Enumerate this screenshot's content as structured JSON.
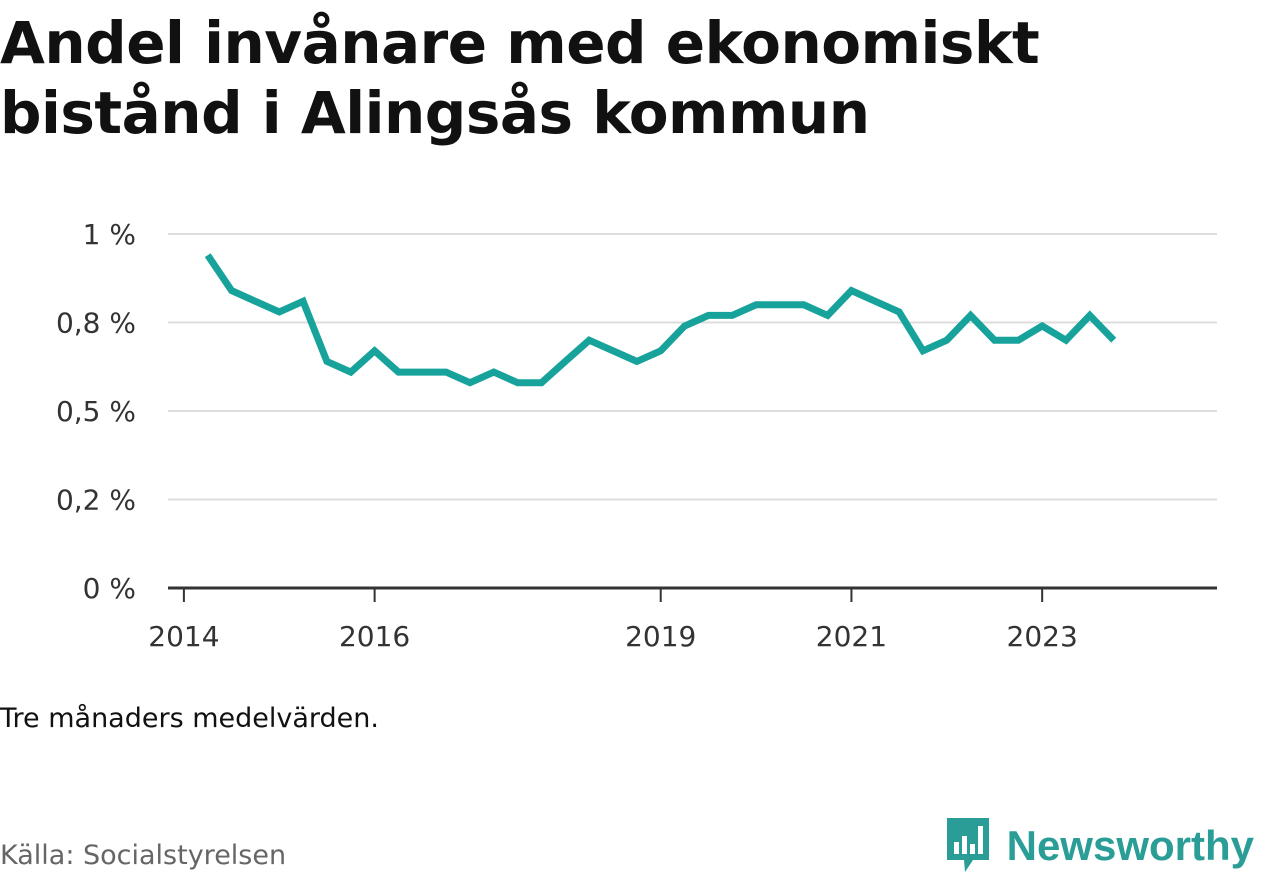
{
  "title": "Andel invånare med ekonomiskt bistånd i Alingsås kommun",
  "note": "Tre månaders medelvärden.",
  "source": "Källa: Socialstyrelsen",
  "brand": {
    "name": "Newsworthy",
    "icon": "bar-chart-speech-icon"
  },
  "colors": {
    "line": "#17a39b",
    "grid": "#dddddd",
    "axis": "#333333",
    "brand": "#2a9d97"
  },
  "chart_data": {
    "type": "line",
    "title": "Andel invånare med ekonomiskt bistånd i Alingsås kommun",
    "xlabel": "",
    "ylabel": "",
    "ylim": [
      0,
      1.0
    ],
    "xlim": [
      "2013-11",
      "2024-11"
    ],
    "y_ticks": [
      {
        "value": 0,
        "label": "0 %"
      },
      {
        "value": 0.25,
        "label": "0,2 %"
      },
      {
        "value": 0.5,
        "label": "0,5 %"
      },
      {
        "value": 0.75,
        "label": "0,8 %"
      },
      {
        "value": 1.0,
        "label": "1 %"
      }
    ],
    "x_ticks": [
      {
        "value": "2014-01",
        "label": "2014"
      },
      {
        "value": "2016-01",
        "label": "2016"
      },
      {
        "value": "2019-01",
        "label": "2019"
      },
      {
        "value": "2021-01",
        "label": "2021"
      },
      {
        "value": "2023-01",
        "label": "2023"
      }
    ],
    "grid": true,
    "legend": "none",
    "series": [
      {
        "x": [
          "2014-04",
          "2014-07",
          "2014-10",
          "2015-01",
          "2015-04",
          "2015-07",
          "2015-10",
          "2016-01",
          "2016-04",
          "2016-07",
          "2016-10",
          "2017-01",
          "2017-04",
          "2017-07",
          "2017-10",
          "2018-01",
          "2018-04",
          "2018-07",
          "2018-10",
          "2019-01",
          "2019-04",
          "2019-07",
          "2019-10",
          "2020-01",
          "2020-04",
          "2020-07",
          "2020-10",
          "2021-01",
          "2021-04",
          "2021-07",
          "2021-10",
          "2022-01",
          "2022-04",
          "2022-07",
          "2022-10",
          "2023-01",
          "2023-04",
          "2023-07",
          "2023-10"
        ],
        "values": [
          0.94,
          0.84,
          0.81,
          0.78,
          0.81,
          0.64,
          0.61,
          0.67,
          0.61,
          0.61,
          0.61,
          0.58,
          0.61,
          0.58,
          0.58,
          0.64,
          0.7,
          0.67,
          0.64,
          0.67,
          0.74,
          0.77,
          0.77,
          0.8,
          0.8,
          0.8,
          0.77,
          0.84,
          0.81,
          0.78,
          0.67,
          0.7,
          0.77,
          0.7,
          0.7,
          0.74,
          0.7,
          0.77,
          0.7
        ]
      }
    ]
  }
}
